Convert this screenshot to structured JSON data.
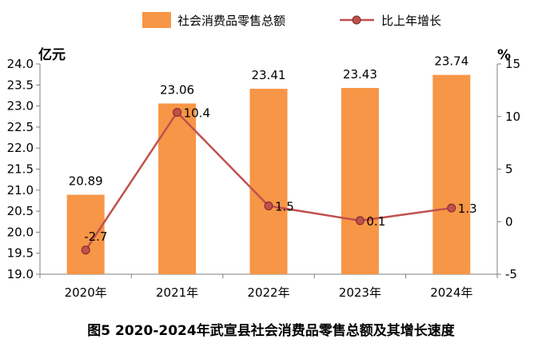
{
  "chart_data": {
    "type": "bar",
    "title": "图5  2020-2024年武宣县社会消费品零售总额及其增长速度",
    "categories": [
      "2020年",
      "2021年",
      "2022年",
      "2023年",
      "2024年"
    ],
    "series": [
      {
        "name": "社会消费品零售总额",
        "type": "bar",
        "axis": "left",
        "values": [
          20.89,
          23.06,
          23.41,
          23.43,
          23.74
        ],
        "labels": [
          "20.89",
          "23.06",
          "23.41",
          "23.43",
          "23.74"
        ],
        "color": "#F79646"
      },
      {
        "name": "比上年增长",
        "type": "line",
        "axis": "right",
        "values": [
          -2.7,
          10.4,
          1.5,
          0.1,
          1.3
        ],
        "labels": [
          "-2.7",
          "10.4",
          "1.5",
          "0.1",
          "1.3"
        ],
        "color": "#C0504D"
      }
    ],
    "y_left": {
      "unit": "亿元",
      "min": 19.0,
      "max": 24.0,
      "step": 0.5,
      "ticks": [
        "19.0",
        "19.5",
        "20.0",
        "20.5",
        "21.0",
        "21.5",
        "22.0",
        "22.5",
        "23.0",
        "23.5",
        "24.0"
      ]
    },
    "y_right": {
      "unit": "%",
      "min": -5,
      "max": 15,
      "step": 5,
      "ticks": [
        "-5",
        "0",
        "5",
        "10",
        "15"
      ]
    },
    "legend_position": "top",
    "grid": false
  }
}
